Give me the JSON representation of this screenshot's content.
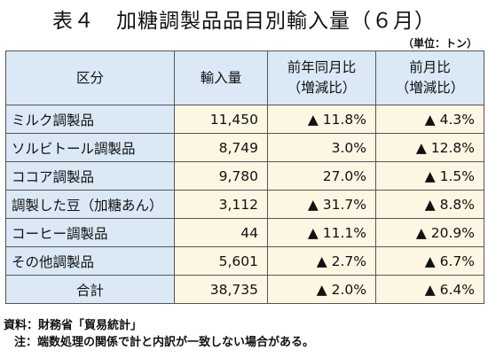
{
  "title": "表４　加糖調製品品目別輸入量（６月）",
  "unit": "（単位：トン）",
  "headers": {
    "category": "区分",
    "volume": "輸入量",
    "yoy_line1": "前年同月比",
    "yoy_line2": "（増減比）",
    "mom_line1": "前月比",
    "mom_line2": "（増減比）"
  },
  "rows": [
    {
      "name": "ミルク調製品",
      "volume": "11,450",
      "yoy": "▲ 11.8%",
      "mom": "▲ 4.3%"
    },
    {
      "name": "ソルビトール調製品",
      "volume": "8,749",
      "yoy": "3.0%",
      "mom": "▲ 12.8%"
    },
    {
      "name": "ココア調製品",
      "volume": "9,780",
      "yoy": "27.0%",
      "mom": "▲ 1.5%"
    },
    {
      "name": "調製した豆（加糖あん）",
      "volume": "3,112",
      "yoy": "▲ 31.7%",
      "mom": "▲ 8.8%"
    },
    {
      "name": "コーヒー調製品",
      "volume": "44",
      "yoy": "▲ 11.1%",
      "mom": "▲ 20.9%"
    },
    {
      "name": "その他調製品",
      "volume": "5,601",
      "yoy": "▲ 2.7%",
      "mom": "▲ 6.7%"
    },
    {
      "name": "合計",
      "volume": "38,735",
      "yoy": "▲ 2.0%",
      "mom": "▲ 6.4%"
    }
  ],
  "notes": {
    "source": "資料：財務省「貿易統計」",
    "note": "注：端数処理の関係で計と内訳が一致しない場合がある。"
  }
}
